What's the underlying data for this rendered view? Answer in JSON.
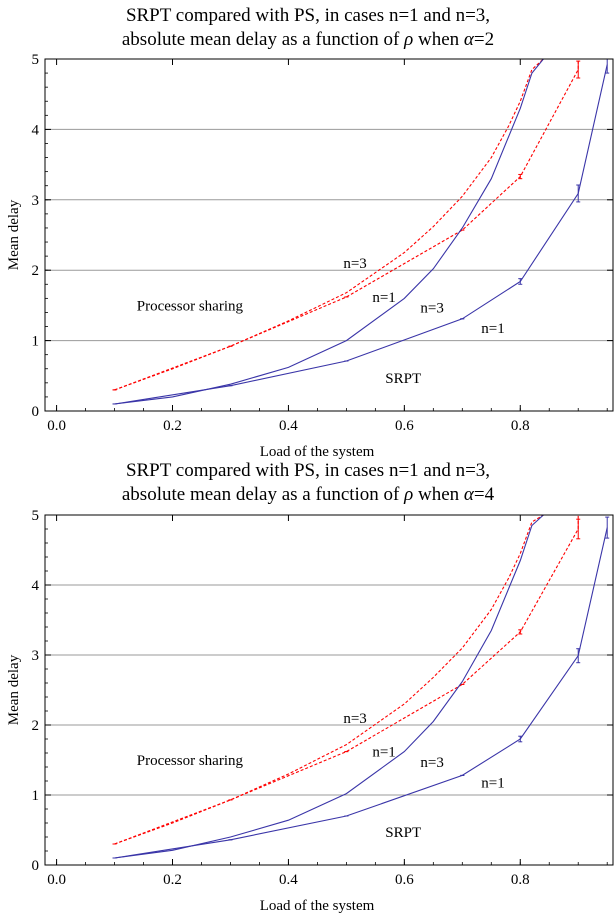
{
  "chart_data": [
    {
      "type": "line",
      "title_line1": "SRPT compared with PS, in cases n=1 and n=3,",
      "title_line2_prefix": "absolute mean delay as a function of ",
      "title_line2_rho": "ρ",
      "title_line2_mid": " when ",
      "title_line2_alpha": "α",
      "title_line2_suffix": "=2",
      "xlabel": "Load of the system",
      "ylabel": "Mean delay",
      "xlim": [
        -0.02,
        0.96
      ],
      "ylim": [
        0,
        5
      ],
      "xticks": [
        "0.0",
        "0.2",
        "0.4",
        "0.6",
        "0.8"
      ],
      "yticks": [
        "0",
        "1",
        "2",
        "3",
        "4",
        "5"
      ],
      "grid": "horizontal",
      "annotations": [
        {
          "text": "Processor sharing",
          "x": 0.23,
          "y": 1.5
        },
        {
          "text": "n=3",
          "x": 0.515,
          "y": 2.1
        },
        {
          "text": "n=1",
          "x": 0.565,
          "y": 1.62
        },
        {
          "text": "n=3",
          "x": 0.648,
          "y": 1.47
        },
        {
          "text": "n=1",
          "x": 0.753,
          "y": 1.18
        },
        {
          "text": "SRPT",
          "x": 0.598,
          "y": 0.47
        }
      ],
      "series": [
        {
          "color": "#ff0000",
          "style": "dashed",
          "x": [
            0.1,
            0.2,
            0.3,
            0.4,
            0.5,
            0.6,
            0.65,
            0.7,
            0.75,
            0.78,
            0.8,
            0.82,
            0.84
          ],
          "y": [
            0.3,
            0.6,
            0.92,
            1.28,
            1.68,
            2.25,
            2.62,
            3.05,
            3.6,
            4.05,
            4.4,
            4.85,
            5.0
          ]
        },
        {
          "color": "#ff0000",
          "style": "dashed",
          "errorbars": true,
          "x": [
            0.1,
            0.3,
            0.5,
            0.7,
            0.8,
            0.9,
            0.9
          ],
          "y": [
            0.3,
            0.92,
            1.62,
            2.57,
            3.33,
            4.85,
            5.0
          ],
          "err": [
            0.0,
            0.0,
            0.0,
            0.0,
            0.03,
            0.12,
            0.0
          ]
        },
        {
          "color": "#3a35a8",
          "style": "solid",
          "x": [
            0.1,
            0.2,
            0.3,
            0.4,
            0.5,
            0.6,
            0.65,
            0.7,
            0.75,
            0.8,
            0.82,
            0.84,
            0.86,
            0.88
          ],
          "y": [
            0.1,
            0.2,
            0.38,
            0.62,
            1.0,
            1.6,
            2.02,
            2.6,
            3.3,
            4.3,
            4.8,
            5.0,
            5.0,
            5.0
          ]
        },
        {
          "color": "#3a35a8",
          "style": "solid",
          "errorbars": true,
          "x": [
            0.1,
            0.3,
            0.5,
            0.7,
            0.8,
            0.9,
            0.95
          ],
          "y": [
            0.1,
            0.36,
            0.71,
            1.31,
            1.84,
            3.09,
            4.92
          ],
          "err": [
            0.0,
            0.0,
            0.0,
            0.0,
            0.04,
            0.12,
            0.12
          ]
        }
      ]
    },
    {
      "type": "line",
      "title_line1": "SRPT compared with PS, in cases n=1 and n=3,",
      "title_line2_prefix": "absolute mean delay as a function of ",
      "title_line2_rho": "ρ",
      "title_line2_mid": " when ",
      "title_line2_alpha": "α",
      "title_line2_suffix": "=4",
      "xlabel": "Load of the system",
      "ylabel": "Mean delay",
      "xlim": [
        -0.02,
        0.96
      ],
      "ylim": [
        0,
        5
      ],
      "xticks": [
        "0.0",
        "0.2",
        "0.4",
        "0.6",
        "0.8"
      ],
      "yticks": [
        "0",
        "1",
        "2",
        "3",
        "4",
        "5"
      ],
      "grid": "horizontal",
      "annotations": [
        {
          "text": "Processor sharing",
          "x": 0.23,
          "y": 1.5
        },
        {
          "text": "n=3",
          "x": 0.515,
          "y": 2.1
        },
        {
          "text": "n=1",
          "x": 0.565,
          "y": 1.62
        },
        {
          "text": "n=3",
          "x": 0.648,
          "y": 1.47
        },
        {
          "text": "n=1",
          "x": 0.753,
          "y": 1.18
        },
        {
          "text": "SRPT",
          "x": 0.598,
          "y": 0.47
        }
      ],
      "series": [
        {
          "color": "#ff0000",
          "style": "dashed",
          "x": [
            0.1,
            0.2,
            0.3,
            0.4,
            0.5,
            0.6,
            0.65,
            0.7,
            0.75,
            0.78,
            0.8,
            0.82,
            0.84
          ],
          "y": [
            0.3,
            0.6,
            0.93,
            1.3,
            1.72,
            2.3,
            2.68,
            3.1,
            3.65,
            4.1,
            4.45,
            4.9,
            5.0
          ]
        },
        {
          "color": "#ff0000",
          "style": "dashed",
          "errorbars": true,
          "x": [
            0.1,
            0.3,
            0.5,
            0.7,
            0.8,
            0.9,
            0.9
          ],
          "y": [
            0.3,
            0.93,
            1.62,
            2.58,
            3.33,
            4.8,
            5.0
          ],
          "err": [
            0.0,
            0.0,
            0.0,
            0.0,
            0.03,
            0.14,
            0.0
          ]
        },
        {
          "color": "#3a35a8",
          "style": "solid",
          "x": [
            0.1,
            0.2,
            0.3,
            0.4,
            0.5,
            0.6,
            0.65,
            0.7,
            0.75,
            0.8,
            0.82,
            0.84,
            0.86,
            0.88
          ],
          "y": [
            0.1,
            0.21,
            0.4,
            0.64,
            1.02,
            1.62,
            2.05,
            2.62,
            3.35,
            4.35,
            4.85,
            5.0,
            5.0,
            5.0
          ]
        },
        {
          "color": "#3a35a8",
          "style": "solid",
          "errorbars": true,
          "x": [
            0.1,
            0.3,
            0.5,
            0.7,
            0.8,
            0.9,
            0.95
          ],
          "y": [
            0.1,
            0.36,
            0.7,
            1.28,
            1.8,
            2.99,
            4.82
          ],
          "err": [
            0.0,
            0.0,
            0.0,
            0.0,
            0.04,
            0.1,
            0.15
          ]
        }
      ]
    }
  ]
}
